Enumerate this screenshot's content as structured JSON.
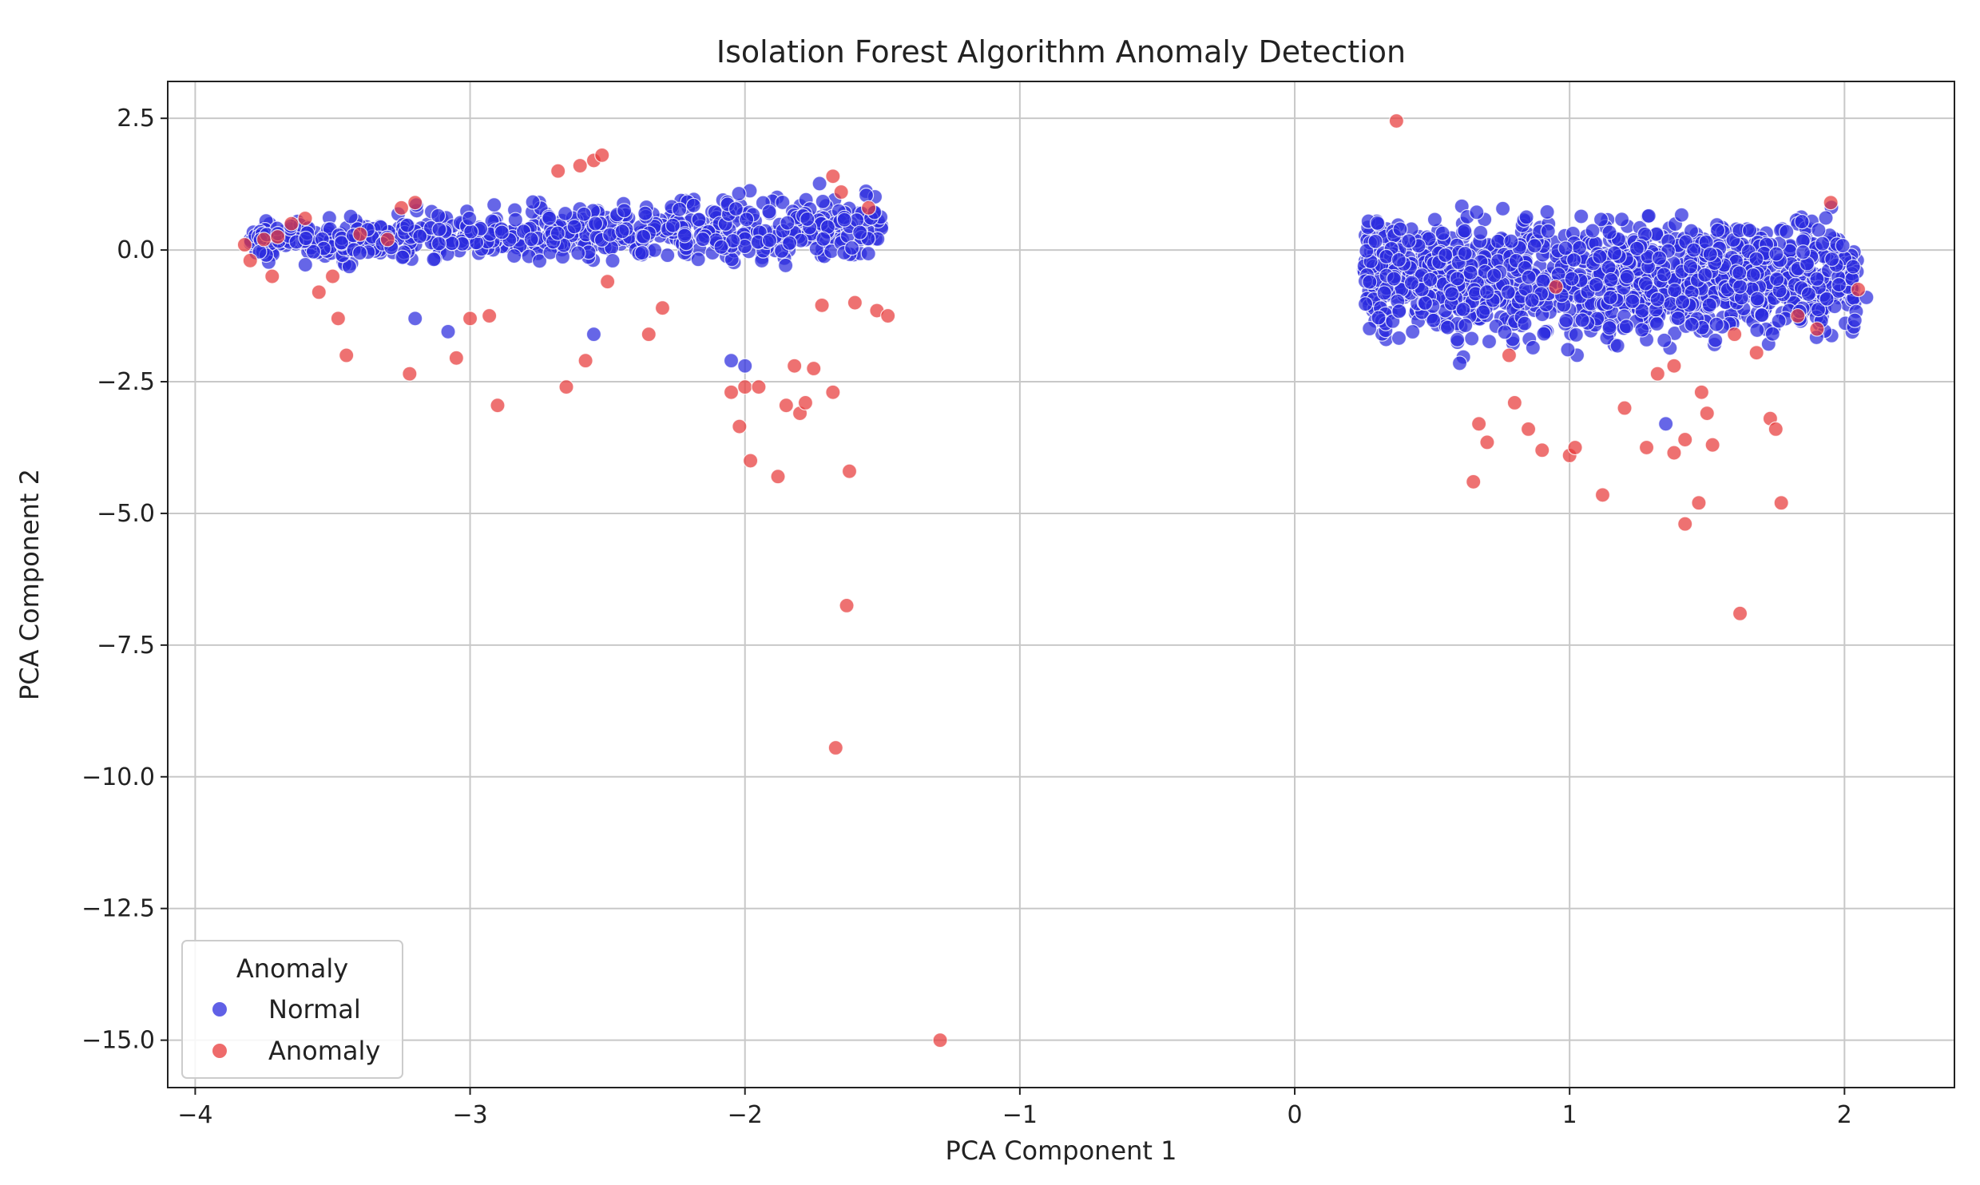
{
  "chart_data": {
    "type": "scatter",
    "title": "Isolation Forest Algorithm Anomaly Detection",
    "xlabel": "PCA Component 1",
    "ylabel": "PCA Component 2",
    "xlim": [
      -4.1,
      2.4
    ],
    "ylim": [
      -15.9,
      3.2
    ],
    "xticks": [
      -4,
      -3,
      -2,
      -1,
      0,
      1,
      2
    ],
    "xtick_labels": [
      "−4",
      "−3",
      "−2",
      "−1",
      "0",
      "1",
      "2"
    ],
    "yticks": [
      2.5,
      0.0,
      -2.5,
      -5.0,
      -7.5,
      -10.0,
      -12.5,
      -15.0
    ],
    "ytick_labels": [
      "2.5",
      "0.0",
      "−2.5",
      "−5.0",
      "−7.5",
      "−10.0",
      "−12.5",
      "−15.0"
    ],
    "grid": true,
    "legend": {
      "title": "Anomaly",
      "placement": "lower-left",
      "entries": [
        {
          "label": "Normal",
          "color": "#2b2bde"
        },
        {
          "label": "Anomaly",
          "color": "#e83a3a"
        }
      ]
    },
    "series": [
      {
        "name": "Normal",
        "color": "#2b2bde",
        "clusters": [
          {
            "x_range": [
              -3.8,
              -1.5
            ],
            "y_range": [
              -1.6,
              1.8
            ],
            "count": 700
          },
          {
            "x_range": [
              0.25,
              2.05
            ],
            "y_range": [
              -3.6,
              2.3
            ],
            "count": 1300
          }
        ],
        "points": [
          {
            "x": -3.2,
            "y": -1.3
          },
          {
            "x": -3.08,
            "y": -1.55
          },
          {
            "x": -2.55,
            "y": -1.6
          },
          {
            "x": -2.05,
            "y": -2.1
          },
          {
            "x": -2.0,
            "y": -2.2
          },
          {
            "x": 2.08,
            "y": -0.9
          },
          {
            "x": 1.9,
            "y": -0.55
          },
          {
            "x": 0.6,
            "y": -2.15
          },
          {
            "x": 1.35,
            "y": -3.3
          }
        ]
      },
      {
        "name": "Anomaly",
        "color": "#e83a3a",
        "points": [
          {
            "x": -3.82,
            "y": 0.1
          },
          {
            "x": -3.8,
            "y": -0.2
          },
          {
            "x": -3.75,
            "y": 0.2
          },
          {
            "x": -3.7,
            "y": 0.25
          },
          {
            "x": -3.72,
            "y": -0.5
          },
          {
            "x": -3.65,
            "y": 0.5
          },
          {
            "x": -3.6,
            "y": 0.6
          },
          {
            "x": -3.55,
            "y": -0.8
          },
          {
            "x": -3.5,
            "y": -0.5
          },
          {
            "x": -3.48,
            "y": -1.3
          },
          {
            "x": -3.45,
            "y": -2.0
          },
          {
            "x": -3.4,
            "y": 0.3
          },
          {
            "x": -3.3,
            "y": 0.2
          },
          {
            "x": -3.25,
            "y": 0.8
          },
          {
            "x": -3.22,
            "y": -2.35
          },
          {
            "x": -3.2,
            "y": 0.9
          },
          {
            "x": -3.05,
            "y": -2.05
          },
          {
            "x": -3.0,
            "y": -1.3
          },
          {
            "x": -2.93,
            "y": -1.25
          },
          {
            "x": -2.9,
            "y": -2.95
          },
          {
            "x": -2.68,
            "y": 1.5
          },
          {
            "x": -2.65,
            "y": -2.6
          },
          {
            "x": -2.6,
            "y": 1.6
          },
          {
            "x": -2.55,
            "y": 1.7
          },
          {
            "x": -2.52,
            "y": 1.8
          },
          {
            "x": -2.58,
            "y": -2.1
          },
          {
            "x": -2.5,
            "y": -0.6
          },
          {
            "x": -2.35,
            "y": -1.6
          },
          {
            "x": -2.3,
            "y": -1.1
          },
          {
            "x": -2.05,
            "y": -2.7
          },
          {
            "x": -2.02,
            "y": -3.35
          },
          {
            "x": -2.0,
            "y": -2.6
          },
          {
            "x": -1.98,
            "y": -4.0
          },
          {
            "x": -1.95,
            "y": -2.6
          },
          {
            "x": -1.88,
            "y": -4.3
          },
          {
            "x": -1.85,
            "y": -2.95
          },
          {
            "x": -1.82,
            "y": -2.2
          },
          {
            "x": -1.8,
            "y": -3.1
          },
          {
            "x": -1.78,
            "y": -2.9
          },
          {
            "x": -1.75,
            "y": -2.25
          },
          {
            "x": -1.72,
            "y": -1.05
          },
          {
            "x": -1.68,
            "y": -2.7
          },
          {
            "x": -1.68,
            "y": 1.4
          },
          {
            "x": -1.65,
            "y": 1.1
          },
          {
            "x": -1.62,
            "y": -4.2
          },
          {
            "x": -1.6,
            "y": -1.0
          },
          {
            "x": -1.55,
            "y": 0.8
          },
          {
            "x": -1.52,
            "y": -1.15
          },
          {
            "x": -1.48,
            "y": -1.25
          },
          {
            "x": -1.63,
            "y": -6.75
          },
          {
            "x": -1.67,
            "y": -9.45
          },
          {
            "x": -1.29,
            "y": -15.0
          },
          {
            "x": 0.37,
            "y": 2.45
          },
          {
            "x": 0.65,
            "y": -4.4
          },
          {
            "x": 0.67,
            "y": -3.3
          },
          {
            "x": 0.7,
            "y": -3.65
          },
          {
            "x": 0.78,
            "y": -2.0
          },
          {
            "x": 0.8,
            "y": -2.9
          },
          {
            "x": 0.85,
            "y": -3.4
          },
          {
            "x": 0.9,
            "y": -3.8
          },
          {
            "x": 0.95,
            "y": -0.7
          },
          {
            "x": 1.0,
            "y": -3.9
          },
          {
            "x": 1.02,
            "y": -3.75
          },
          {
            "x": 1.12,
            "y": -4.65
          },
          {
            "x": 1.2,
            "y": -3.0
          },
          {
            "x": 1.28,
            "y": -3.75
          },
          {
            "x": 1.32,
            "y": -2.35
          },
          {
            "x": 1.38,
            "y": -2.2
          },
          {
            "x": 1.38,
            "y": -3.85
          },
          {
            "x": 1.42,
            "y": -3.6
          },
          {
            "x": 1.48,
            "y": -2.7
          },
          {
            "x": 1.5,
            "y": -3.1
          },
          {
            "x": 1.52,
            "y": -3.7
          },
          {
            "x": 1.42,
            "y": -5.2
          },
          {
            "x": 1.47,
            "y": -4.8
          },
          {
            "x": 1.6,
            "y": -1.6
          },
          {
            "x": 1.62,
            "y": -6.9
          },
          {
            "x": 1.68,
            "y": -1.95
          },
          {
            "x": 1.73,
            "y": -3.2
          },
          {
            "x": 1.75,
            "y": -3.4
          },
          {
            "x": 1.77,
            "y": -4.8
          },
          {
            "x": 1.83,
            "y": -1.25
          },
          {
            "x": 1.9,
            "y": -1.5
          },
          {
            "x": 1.95,
            "y": 0.9
          },
          {
            "x": 2.05,
            "y": -0.75
          }
        ]
      }
    ]
  }
}
